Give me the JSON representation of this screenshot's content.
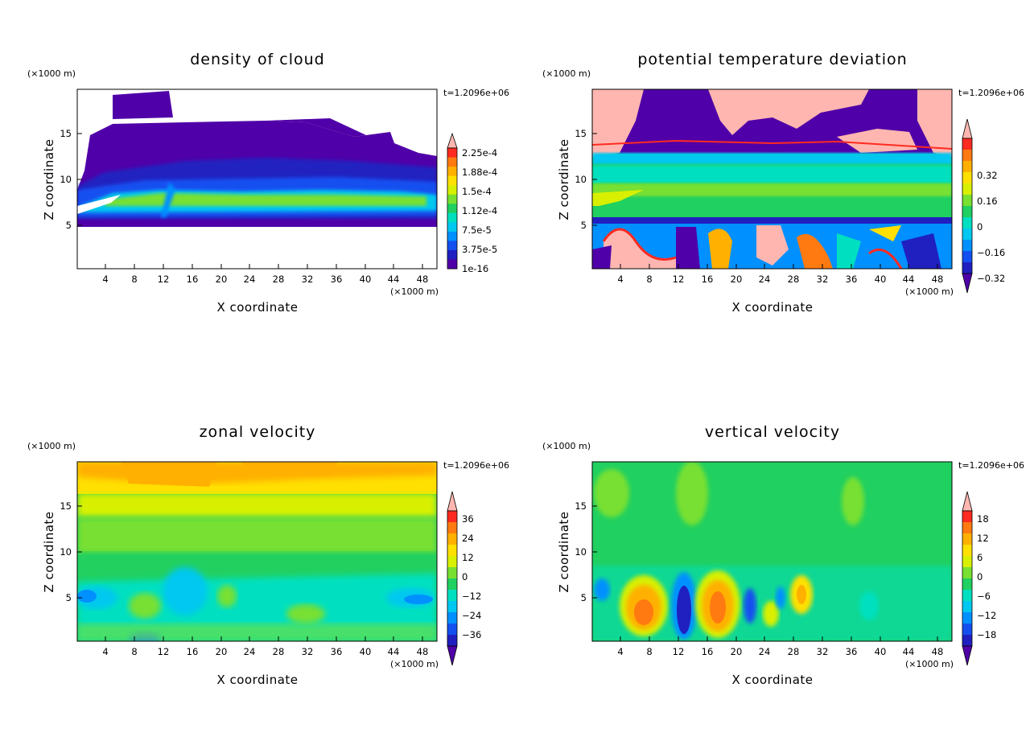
{
  "chart_data": [
    {
      "type": "heatmap",
      "title": "density of cloud",
      "xlabel": "X coordinate",
      "ylabel": "Z coordinate",
      "x_unit": "(×1000 m)",
      "y_unit": "(×1000 m)",
      "time_label": "t=1.2096e+06",
      "xlim": [
        0,
        50
      ],
      "ylim": [
        0,
        19.7
      ],
      "x_ticks": [
        "4",
        "8",
        "12",
        "16",
        "20",
        "24",
        "28",
        "32",
        "36",
        "40",
        "44",
        "48"
      ],
      "y_ticks": [
        "5",
        "10",
        "15"
      ],
      "colorbar_labels": [
        "2.25e-4",
        "1.88e-4",
        "1.5e-4",
        "1.12e-4",
        "7.5e-5",
        "3.75e-5",
        "1e-16"
      ],
      "colorbar_colors": [
        "#ffb6b0",
        "#ff2a20",
        "#ff7a10",
        "#ffb000",
        "#ffe000",
        "#d8f000",
        "#78e030",
        "#20d060",
        "#00e0c0",
        "#00c8f0",
        "#0090ff",
        "#1450f0",
        "#2020c0",
        "#5000a8"
      ],
      "regions": [
        {
          "value": "1e-16",
          "shape": "thin cloud, 5–18 km"
        },
        {
          "value": "1.12e-4",
          "shape": "dense band near 7–8 km"
        }
      ]
    },
    {
      "type": "heatmap",
      "title": "potential temperature deviation",
      "xlabel": "X coordinate",
      "ylabel": "Z coordinate",
      "x_unit": "(×1000 m)",
      "y_unit": "(×1000 m)",
      "time_label": "t=1.2096e+06",
      "xlim": [
        0,
        50
      ],
      "ylim": [
        0,
        19.7
      ],
      "x_ticks": [
        "4",
        "8",
        "12",
        "16",
        "20",
        "24",
        "28",
        "32",
        "36",
        "40",
        "44",
        "48"
      ],
      "y_ticks": [
        "5",
        "10",
        "15"
      ],
      "colorbar_labels": [
        "0.32",
        "0.16",
        "0",
        "−0.16",
        "−0.32"
      ],
      "colorbar_colors": [
        "#ffb6b0",
        "#ff2a20",
        "#ff7a10",
        "#ffb000",
        "#ffe000",
        "#d8f000",
        "#78e030",
        "#20d060",
        "#00e0c0",
        "#00c8f0",
        "#0090ff",
        "#1450f0",
        "#2020c0",
        "#5000a8"
      ]
    },
    {
      "type": "heatmap",
      "title": "zonal velocity",
      "xlabel": "X coordinate",
      "ylabel": "Z coordinate",
      "x_unit": "(×1000 m)",
      "y_unit": "(×1000 m)",
      "time_label": "t=1.2096e+06",
      "xlim": [
        0,
        50
      ],
      "ylim": [
        0,
        19.7
      ],
      "x_ticks": [
        "4",
        "8",
        "12",
        "16",
        "20",
        "24",
        "28",
        "32",
        "36",
        "40",
        "44",
        "48"
      ],
      "y_ticks": [
        "5",
        "10",
        "15"
      ],
      "colorbar_labels": [
        "36",
        "24",
        "12",
        "0",
        "−12",
        "−24",
        "−36"
      ],
      "colorbar_colors": [
        "#ffb6b0",
        "#ff2a20",
        "#ff7a10",
        "#ffb000",
        "#ffe000",
        "#d8f000",
        "#78e030",
        "#20d060",
        "#00e0c0",
        "#00c8f0",
        "#0090ff",
        "#1450f0",
        "#2020c0",
        "#5000a8"
      ]
    },
    {
      "type": "heatmap",
      "title": "vertical velocity",
      "xlabel": "X coordinate",
      "ylabel": "Z coordinate",
      "x_unit": "(×1000 m)",
      "y_unit": "(×1000 m)",
      "time_label": "t=1.2096e+06",
      "xlim": [
        0,
        50
      ],
      "ylim": [
        0,
        19.7
      ],
      "x_ticks": [
        "4",
        "8",
        "12",
        "16",
        "20",
        "24",
        "28",
        "32",
        "36",
        "40",
        "44",
        "48"
      ],
      "y_ticks": [
        "5",
        "10",
        "15"
      ],
      "colorbar_labels": [
        "18",
        "12",
        "6",
        "0",
        "−6",
        "−12",
        "−18"
      ],
      "colorbar_colors": [
        "#ffb6b0",
        "#ff2a20",
        "#ff7a10",
        "#ffb000",
        "#ffe000",
        "#d8f000",
        "#78e030",
        "#20d060",
        "#00e0c0",
        "#00c8f0",
        "#0090ff",
        "#1450f0",
        "#2020c0",
        "#5000a8"
      ]
    }
  ]
}
